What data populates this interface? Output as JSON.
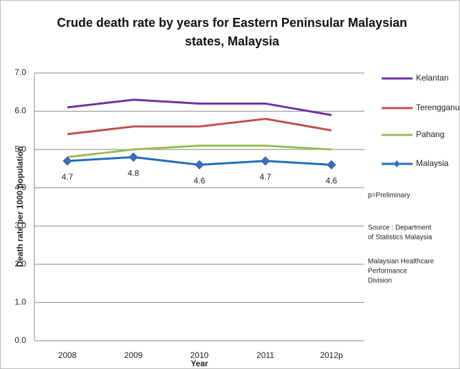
{
  "chart_data": {
    "type": "line",
    "title": "Crude death rate by years for Eastern Peninsular Malaysian states, Malaysia",
    "x_label": "Year",
    "y_label": "Death rate per 1000 population",
    "categories": [
      "2008",
      "2009",
      "2010",
      "2011",
      "2012p"
    ],
    "series": [
      {
        "name": "Kelantan",
        "color": "#7030a0",
        "values": [
          6.1,
          6.3,
          6.2,
          6.2,
          5.9
        ]
      },
      {
        "name": "Terengganu",
        "color": "#c0504d",
        "values": [
          5.4,
          5.6,
          5.6,
          5.8,
          5.5
        ]
      },
      {
        "name": "Pahang",
        "color": "#9bbb59",
        "values": [
          4.8,
          5.0,
          5.1,
          5.1,
          5.0
        ]
      },
      {
        "name": "Malaysia",
        "color": "#1f6db5",
        "marker": "diamond",
        "data_labels": true,
        "values": [
          4.7,
          4.8,
          4.6,
          4.7,
          4.6
        ]
      }
    ],
    "ylim": [
      0,
      7
    ],
    "yticks": [
      {
        "value": 0,
        "label": "0.0"
      },
      {
        "value": 1,
        "label": "1.0"
      },
      {
        "value": 2,
        "label": "2.0"
      },
      {
        "value": 3,
        "label": "3.0"
      },
      {
        "value": 4,
        "label": "4.0"
      },
      {
        "value": 5,
        "label": "5.0"
      },
      {
        "value": 6,
        "label": "6.0"
      },
      {
        "value": 7,
        "label": "7.0"
      }
    ],
    "grid": true,
    "legend": "right",
    "annotations": [
      [
        "p=Preliminary"
      ],
      [
        "Source : Department",
        "of Statistics Malaysia"
      ],
      [
        "Malaysian Healthcare",
        "Performance",
        "Division"
      ]
    ]
  }
}
